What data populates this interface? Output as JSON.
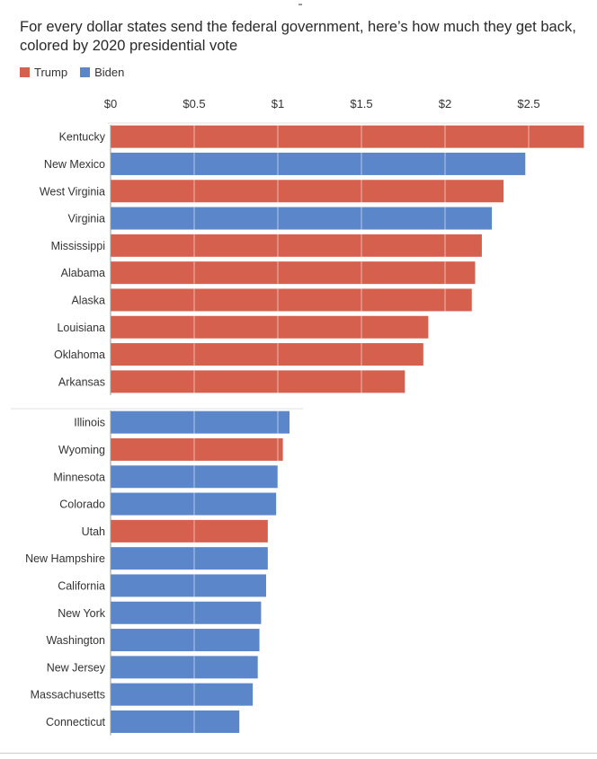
{
  "title": "For every dollar states send the federal government, here’s how much they get back, colored by 2020 presidential vote",
  "legend": {
    "trump_label": "Trump",
    "biden_label": "Biden"
  },
  "colors": {
    "Trump": "#d5604e",
    "Biden": "#5b86c9"
  },
  "chart_data": {
    "type": "bar",
    "orientation": "horizontal",
    "title": "For every dollar states send the federal government, here’s how much they get back, colored by 2020 presidential vote",
    "xlim": [
      0,
      2.85
    ],
    "x_ticks": [
      {
        "value": 0,
        "label": "$0"
      },
      {
        "value": 0.5,
        "label": "$0.5"
      },
      {
        "value": 1,
        "label": "$1"
      },
      {
        "value": 1.5,
        "label": "$1.5"
      },
      {
        "value": 2,
        "label": "$2"
      },
      {
        "value": 2.5,
        "label": "$2.5"
      }
    ],
    "legend_position": "top-left",
    "grid": true,
    "groups": [
      {
        "bars": [
          {
            "state": "Kentucky",
            "value": 2.83,
            "vote": "Trump"
          },
          {
            "state": "New Mexico",
            "value": 2.48,
            "vote": "Biden"
          },
          {
            "state": "West Virginia",
            "value": 2.35,
            "vote": "Trump"
          },
          {
            "state": "Virginia",
            "value": 2.28,
            "vote": "Biden"
          },
          {
            "state": "Mississippi",
            "value": 2.22,
            "vote": "Trump"
          },
          {
            "state": "Alabama",
            "value": 2.18,
            "vote": "Trump"
          },
          {
            "state": "Alaska",
            "value": 2.16,
            "vote": "Trump"
          },
          {
            "state": "Louisiana",
            "value": 1.9,
            "vote": "Trump"
          },
          {
            "state": "Oklahoma",
            "value": 1.87,
            "vote": "Trump"
          },
          {
            "state": "Arkansas",
            "value": 1.76,
            "vote": "Trump"
          }
        ]
      },
      {
        "bars": [
          {
            "state": "Illinois",
            "value": 1.07,
            "vote": "Biden"
          },
          {
            "state": "Wyoming",
            "value": 1.03,
            "vote": "Trump"
          },
          {
            "state": "Minnesota",
            "value": 1.0,
            "vote": "Biden"
          },
          {
            "state": "Colorado",
            "value": 0.99,
            "vote": "Biden"
          },
          {
            "state": "Utah",
            "value": 0.94,
            "vote": "Trump"
          },
          {
            "state": "New Hampshire",
            "value": 0.94,
            "vote": "Biden"
          },
          {
            "state": "California",
            "value": 0.93,
            "vote": "Biden"
          },
          {
            "state": "New York",
            "value": 0.9,
            "vote": "Biden"
          },
          {
            "state": "Washington",
            "value": 0.89,
            "vote": "Biden"
          },
          {
            "state": "New Jersey",
            "value": 0.88,
            "vote": "Biden"
          },
          {
            "state": "Massachusetts",
            "value": 0.85,
            "vote": "Biden"
          },
          {
            "state": "Connecticut",
            "value": 0.77,
            "vote": "Biden"
          }
        ]
      }
    ]
  }
}
